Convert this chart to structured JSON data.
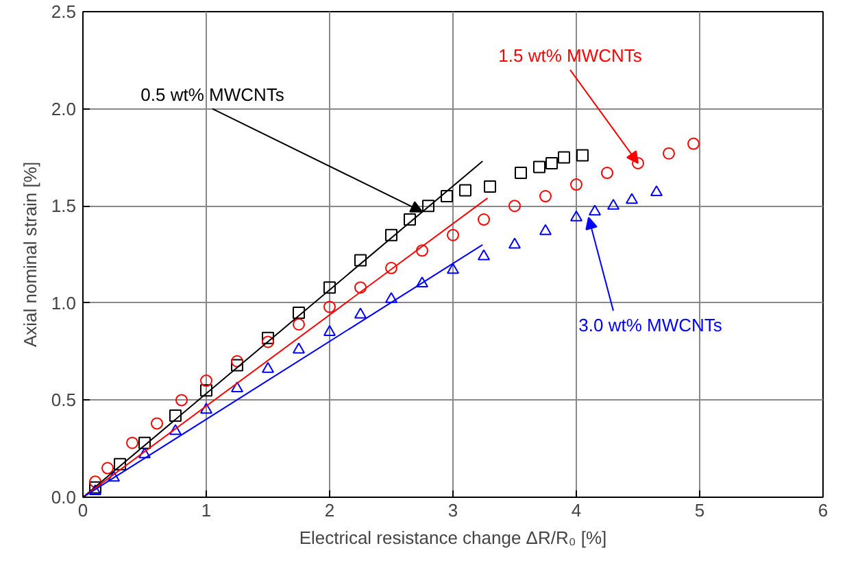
{
  "chart_data": {
    "type": "scatter",
    "xlabel": "Electrical resistance change ΔR/R₀ [%]",
    "ylabel": "Axial nominal strain [%]",
    "xlim": [
      0,
      6
    ],
    "ylim": [
      0,
      2.5
    ],
    "xticks": [
      0,
      1,
      2,
      3,
      4,
      5,
      6
    ],
    "yticks": [
      {
        "value": 0,
        "label": "0.0"
      },
      0.5,
      {
        "value": 1,
        "label": "1.0"
      },
      1.5,
      {
        "value": 2,
        "label": "2.0"
      },
      2.5
    ],
    "grid": true,
    "series": [
      {
        "color": "#000000",
        "marker": "square",
        "x": [
          0.1,
          0.3,
          0.5,
          0.75,
          1,
          1.25,
          1.5,
          1.75,
          2,
          2.25,
          2.5,
          2.65,
          2.8,
          2.95,
          3.1,
          3.3,
          3.55,
          3.7,
          3.8,
          3.9,
          4.05
        ],
        "values": [
          0.05,
          0.17,
          0.28,
          0.42,
          0.55,
          0.68,
          0.82,
          0.95,
          1.08,
          1.22,
          1.35,
          1.43,
          1.5,
          1.55,
          1.58,
          1.6,
          1.67,
          1.7,
          1.72,
          1.75,
          1.76
        ]
      },
      {
        "color": "#ff0000",
        "marker": "circle",
        "x": [
          0.1,
          0.2,
          0.4,
          0.6,
          0.8,
          1,
          1.25,
          1.5,
          1.75,
          2,
          2.25,
          2.5,
          2.75,
          3,
          3.25,
          3.5,
          3.75,
          4,
          4.25,
          4.5,
          4.75,
          4.95
        ],
        "values": [
          0.08,
          0.15,
          0.28,
          0.38,
          0.5,
          0.6,
          0.7,
          0.8,
          0.89,
          0.98,
          1.08,
          1.18,
          1.27,
          1.35,
          1.43,
          1.5,
          1.55,
          1.61,
          1.67,
          1.72,
          1.77,
          1.82
        ]
      },
      {
        "color": "#0000ff",
        "marker": "triangle",
        "x": [
          0.1,
          0.25,
          0.5,
          0.75,
          1,
          1.25,
          1.5,
          1.75,
          2,
          2.25,
          2.5,
          2.75,
          3,
          3.25,
          3.5,
          3.75,
          4,
          4.15,
          4.3,
          4.45,
          4.65
        ],
        "values": [
          0.03,
          0.1,
          0.22,
          0.34,
          0.45,
          0.56,
          0.66,
          0.76,
          0.85,
          0.94,
          1.02,
          1.1,
          1.17,
          1.24,
          1.3,
          1.37,
          1.44,
          1.47,
          1.5,
          1.53,
          1.57
        ]
      },
      {
        "type": "line",
        "color": "#000000",
        "x": [
          0,
          3.24
        ],
        "values": [
          0,
          1.73
        ]
      },
      {
        "type": "line",
        "color": "#ff0000",
        "x": [
          0,
          3.28
        ],
        "values": [
          0,
          1.54
        ]
      },
      {
        "type": "line",
        "color": "#0000ff",
        "x": [
          0,
          3.24
        ],
        "values": [
          0,
          1.3
        ]
      }
    ],
    "annotations": [
      {
        "text": "0.5 wt% MWCNTs",
        "x": 2.75,
        "y": 1.47
      },
      {
        "text": "1.5 wt% MWCNTs",
        "x": 4.5,
        "y": 1.72
      },
      {
        "text": "3.0 wt% MWCNTs",
        "x": 4.1,
        "y": 1.44
      }
    ]
  }
}
